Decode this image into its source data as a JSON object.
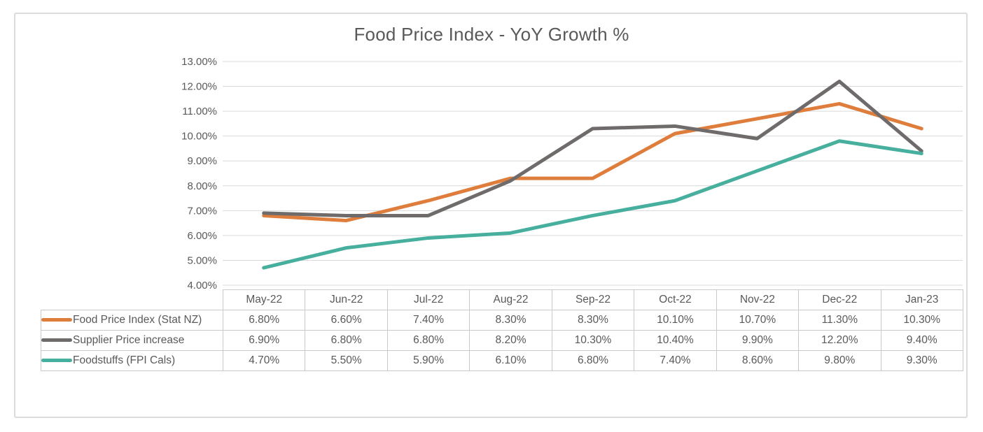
{
  "chart": {
    "title": "Food Price Index - YoY Growth %"
  },
  "chart_data": {
    "type": "line",
    "title": "Food Price Index - YoY Growth %",
    "categories": [
      "May-22",
      "Jun-22",
      "Jul-22",
      "Aug-22",
      "Sep-22",
      "Oct-22",
      "Nov-22",
      "Dec-22",
      "Jan-23"
    ],
    "series": [
      {
        "name": "Food Price Index (Stat NZ)",
        "color": "#df7d3c",
        "values": [
          6.8,
          6.6,
          7.4,
          8.3,
          8.3,
          10.1,
          10.7,
          11.3,
          10.3
        ]
      },
      {
        "name": "Supplier Price increase",
        "color": "#6f6b6b",
        "values": [
          6.9,
          6.8,
          6.8,
          8.2,
          10.3,
          10.4,
          9.9,
          12.2,
          9.4
        ]
      },
      {
        "name": "Foodstuffs (FPI Cals)",
        "color": "#47af9d",
        "values": [
          4.7,
          5.5,
          5.9,
          6.1,
          6.8,
          7.4,
          8.6,
          9.8,
          9.3
        ]
      }
    ],
    "ylim": [
      4,
      13
    ],
    "ytick_step": 1,
    "ytick_labels": [
      "4.00%",
      "5.00%",
      "6.00%",
      "7.00%",
      "8.00%",
      "9.00%",
      "10.00%",
      "11.00%",
      "12.00%",
      "13.00%"
    ],
    "value_suffix": "%",
    "grid": true,
    "legend_position": "table-left",
    "colors": {
      "grid": "#d9d9d9",
      "text": "#595959",
      "table_border": "#c9c9c9"
    }
  }
}
